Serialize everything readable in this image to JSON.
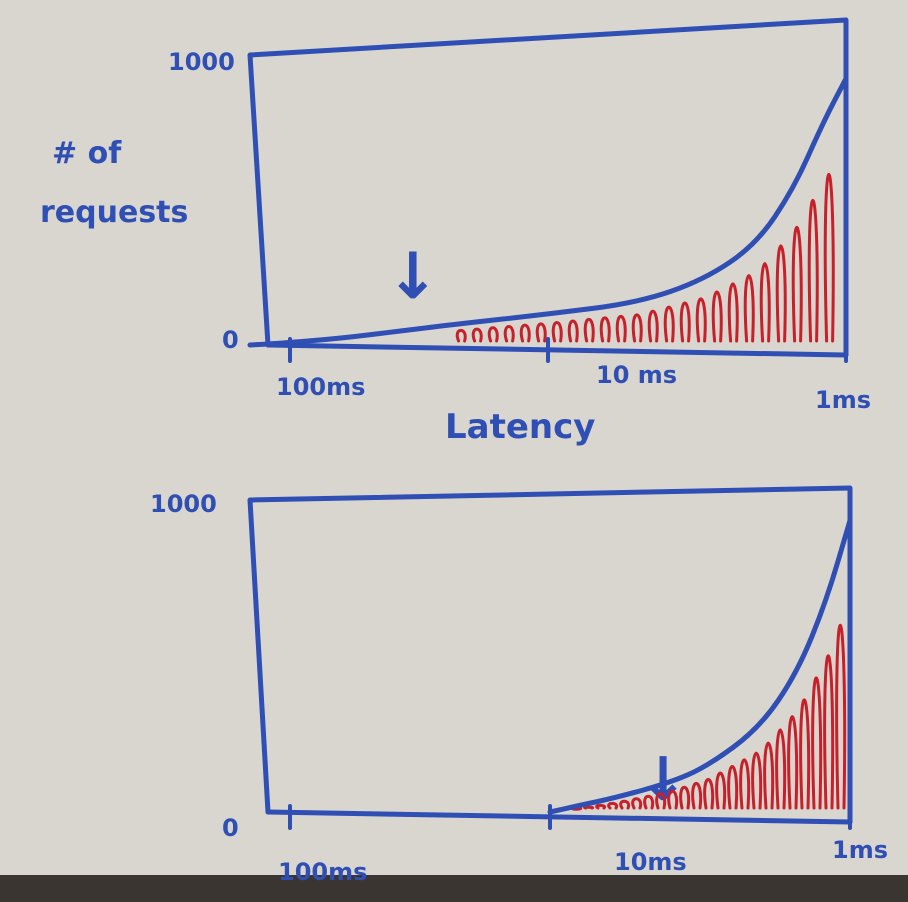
{
  "chart_data": [
    {
      "type": "area",
      "ylabel_lines": [
        "# of",
        "requests"
      ],
      "xlabel": "Latency",
      "x_scale": "log, reversed",
      "x_ticks": [
        "100ms",
        "10 ms",
        "1ms"
      ],
      "y_ticks": [
        "0",
        "1000"
      ],
      "ylim": [
        0,
        1000
      ],
      "marker": "↓",
      "marker_at": "30ms",
      "series": [
        {
          "x": [
            100,
            80,
            50,
            30,
            20,
            10,
            5,
            3,
            2,
            1.5,
            1.2,
            1
          ],
          "values": [
            0,
            5,
            20,
            45,
            65,
            95,
            130,
            200,
            310,
            480,
            680,
            820
          ]
        }
      ]
    },
    {
      "type": "area",
      "xlabel": "",
      "x_scale": "log, reversed",
      "x_ticks": [
        "100ms",
        "10ms",
        "1ms"
      ],
      "y_ticks": [
        "0",
        "1000"
      ],
      "ylim": [
        0,
        1000
      ],
      "marker": "↓",
      "marker_at": "10ms",
      "series": [
        {
          "x": [
            10,
            8,
            6,
            4,
            3,
            2,
            1.5,
            1.2,
            1
          ],
          "values": [
            0,
            20,
            45,
            90,
            140,
            260,
            430,
            650,
            900
          ]
        }
      ]
    }
  ],
  "colors": {
    "ink": "#2f4fb5",
    "fill": "#c8202a",
    "paper": "#d8d6ce"
  }
}
